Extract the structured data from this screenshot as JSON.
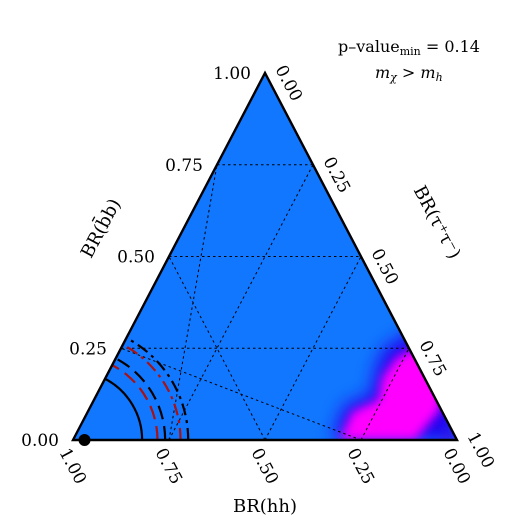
{
  "chart_data": {
    "type": "ternary",
    "annotation": {
      "line1": "p–value",
      "line1_sub": "min",
      "line1_tail": " = 0.14",
      "line2_a": "m",
      "line2_a_sub": "χ",
      "line2_mid": " > ",
      "line2_b": "m",
      "line2_b_sub": "h"
    },
    "axes": {
      "left": {
        "label": "BR(b̄b)",
        "ticks": [
          "0.00",
          "0.25",
          "0.50",
          "0.75",
          "1.00"
        ],
        "tick_values": [
          0,
          0.25,
          0.5,
          0.75,
          1
        ]
      },
      "right": {
        "label": "BR(τ⁺τ⁻)",
        "ticks": [
          "0.00",
          "0.25",
          "0.50",
          "0.75",
          "1.00"
        ],
        "tick_values": [
          0,
          0.25,
          0.5,
          0.75,
          1
        ]
      },
      "bottom": {
        "label": "BR(hh)",
        "ticks": [
          "1.00",
          "0.75",
          "0.50",
          "0.25",
          "0.00"
        ],
        "tick_values": [
          1,
          0.75,
          0.5,
          0.25,
          0
        ]
      }
    },
    "grid": true,
    "background_color": "#1177ff",
    "hotspot_colors": [
      "#ff00ff",
      "#3300ee"
    ],
    "best_fit_point": {
      "hh": 0.97,
      "bb": 0.0,
      "tautau": 0.03
    },
    "contours": [
      {
        "style": "solid",
        "color": "#000000",
        "radius": 0.18
      },
      {
        "style": "dashed",
        "color": "#000000",
        "radius": 0.24
      },
      {
        "style": "dashdot",
        "color": "#000000",
        "radius": 0.3
      },
      {
        "style": "dashed",
        "color": "#aa1111",
        "radius": 0.22
      },
      {
        "style": "dashdot",
        "color": "#aa1111",
        "radius": 0.28
      }
    ]
  }
}
